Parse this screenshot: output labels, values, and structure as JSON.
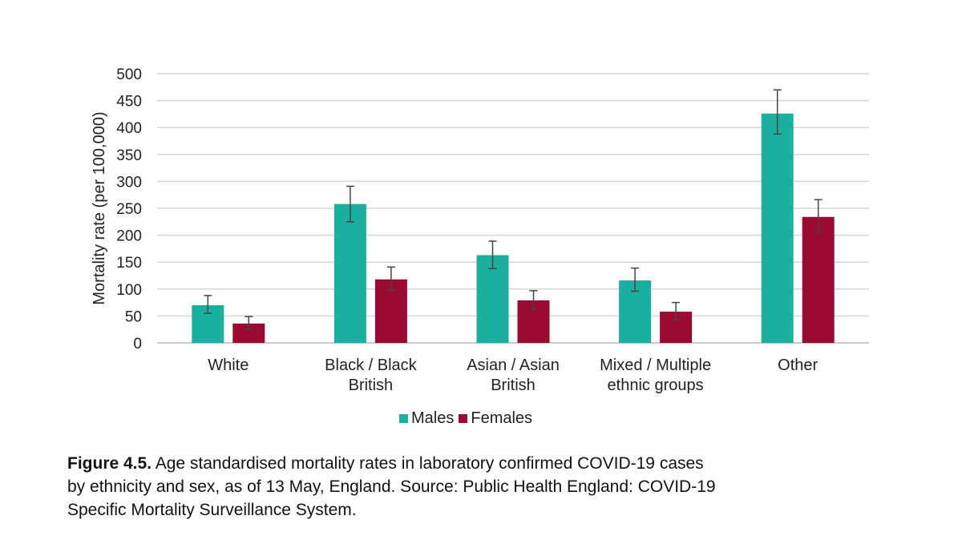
{
  "chart_data": {
    "type": "bar",
    "title": "",
    "xlabel": "",
    "ylabel": "Mortality rate (per 100,000)",
    "ylim": [
      0,
      500
    ],
    "yticks": [
      0,
      50,
      100,
      150,
      200,
      250,
      300,
      350,
      400,
      450,
      500
    ],
    "grid": true,
    "legend_placement": "bottom",
    "categories": [
      [
        "White"
      ],
      [
        "Black / Black",
        "British"
      ],
      [
        "Asian / Asian",
        "British"
      ],
      [
        "Mixed / Multiple",
        "ethnic groups"
      ],
      [
        "Other"
      ]
    ],
    "series": [
      {
        "name": "Males",
        "color": "#1baf9f",
        "values": [
          70,
          258,
          163,
          116,
          426
        ],
        "error_low": [
          55,
          225,
          138,
          96,
          388
        ],
        "error_high": [
          88,
          291,
          189,
          139,
          470
        ]
      },
      {
        "name": "Females",
        "color": "#9b0a33",
        "values": [
          36,
          118,
          79,
          58,
          234
        ],
        "error_low": [
          25,
          97,
          62,
          43,
          206
        ],
        "error_high": [
          49,
          141,
          97,
          75,
          266
        ]
      }
    ]
  },
  "caption": {
    "lead": "Figure 4.5.",
    "line1": " Age standardised mortality rates in laboratory confirmed COVID-19 cases",
    "line2": "by ethnicity and sex, as of 13 May, England. Source: Public Health England: COVID-19",
    "line3": "Specific Mortality Surveillance System."
  }
}
